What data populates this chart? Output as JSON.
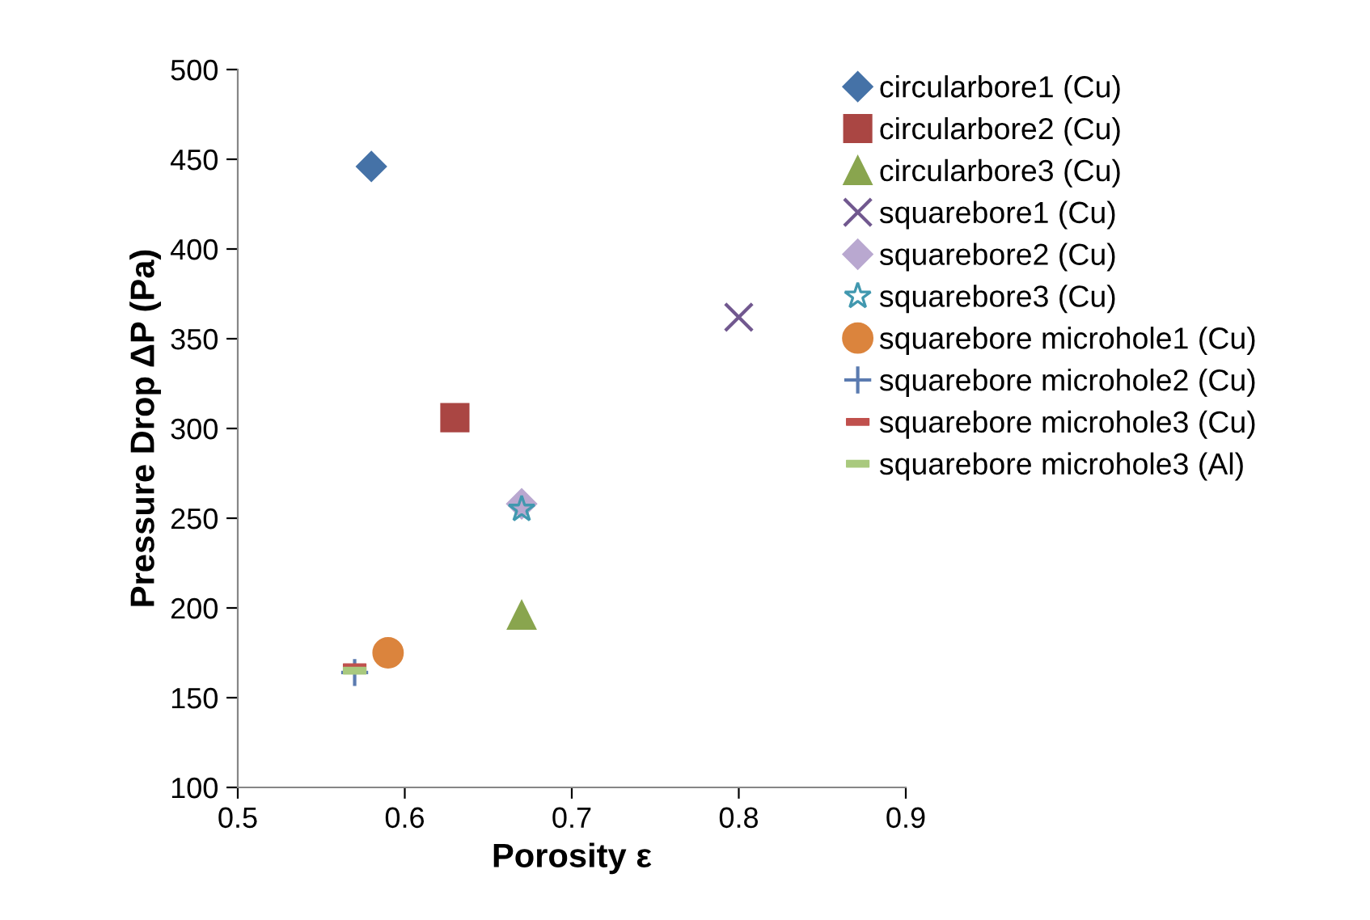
{
  "chart_data": {
    "type": "scatter",
    "xlabel": "Porosity ε",
    "ylabel": "Pressure Drop ΔP (Pa)",
    "xlim": [
      0.5,
      0.9
    ],
    "xticks": [
      0.5,
      0.6,
      0.7,
      0.8,
      0.9
    ],
    "ylim": [
      100,
      500
    ],
    "yticks": [
      100,
      150,
      200,
      250,
      300,
      350,
      400,
      450,
      500
    ],
    "grid": false,
    "legend": "right",
    "series": [
      {
        "name": "circularbore1 (Cu)",
        "color": "#4572a7",
        "marker": "diamond",
        "x": [
          0.58
        ],
        "values": [
          446
        ]
      },
      {
        "name": "circularbore2 (Cu)",
        "color": "#aa4643",
        "marker": "square",
        "x": [
          0.63
        ],
        "values": [
          306
        ]
      },
      {
        "name": "circularbore3 (Cu)",
        "color": "#89a54e",
        "marker": "triangle",
        "x": [
          0.67
        ],
        "values": [
          196
        ]
      },
      {
        "name": "squarebore1 (Cu)",
        "color": "#71588f",
        "marker": "cross",
        "x": [
          0.8
        ],
        "values": [
          362
        ]
      },
      {
        "name": "squarebore2 (Cu)",
        "color": "#b9a8d0",
        "marker": "diamond",
        "x": [
          0.67
        ],
        "values": [
          258
        ]
      },
      {
        "name": "squarebore3 (Cu)",
        "color": "#4198af",
        "marker": "star",
        "x": [
          0.67
        ],
        "values": [
          255
        ]
      },
      {
        "name": "squarebore microhole1 (Cu)",
        "color": "#db843d",
        "marker": "circle",
        "x": [
          0.59
        ],
        "values": [
          175
        ]
      },
      {
        "name": "squarebore microhole2 (Cu)",
        "color": "#5b7bb0",
        "marker": "plus",
        "x": [
          0.57
        ],
        "values": [
          164
        ]
      },
      {
        "name": "squarebore microhole3 (Cu)",
        "color": "#c0504d",
        "x": [
          0.57
        ],
        "values": [
          167
        ]
      },
      {
        "name": "squarebore microhole3 (Al)",
        "color": "#a9c97e",
        "x": [
          0.57
        ],
        "values": [
          165
        ]
      }
    ]
  }
}
